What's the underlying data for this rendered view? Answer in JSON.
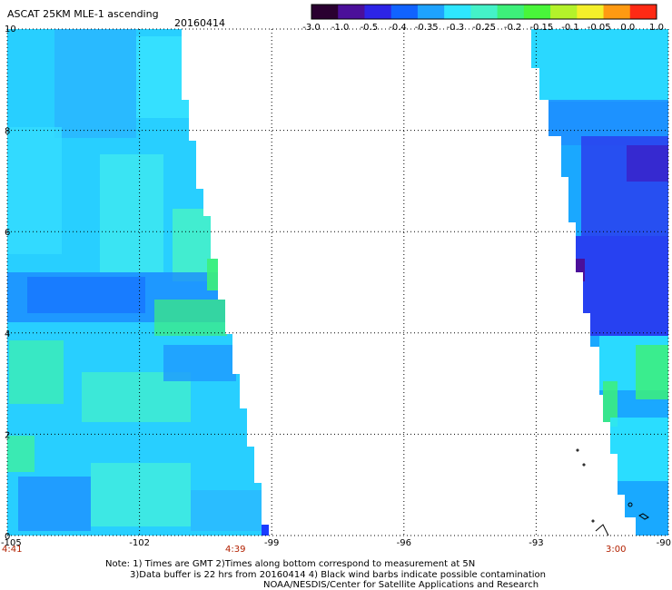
{
  "header": {
    "title": "ASCAT 25KM MLE-1 ascending",
    "date": "20160414"
  },
  "colorbar": {
    "labels": [
      "-3.0",
      "-1.0",
      "-0.5",
      "-0.4",
      "-0.35",
      "-0.3",
      "-0.25",
      "-0.2",
      "-0.15",
      "-0.1",
      "-0.05",
      "0.0",
      "1.0"
    ],
    "colors": [
      "#2a0030",
      "#4b0f9a",
      "#2d24e6",
      "#1163ff",
      "#1ea3ff",
      "#2ee6ff",
      "#44f2c8",
      "#3df07a",
      "#49f53a",
      "#b4f22a",
      "#f4ef2a",
      "#ff9a12",
      "#ff2a14"
    ]
  },
  "map": {
    "x_axis": {
      "ticks": [
        {
          "value": -105,
          "label": "-105"
        },
        {
          "value": -102,
          "label": "-102"
        },
        {
          "value": -99,
          "label": "-99"
        },
        {
          "value": -96,
          "label": "-96"
        },
        {
          "value": -93,
          "label": "-93"
        },
        {
          "value": -90,
          "label": "-90"
        }
      ]
    },
    "y_axis": {
      "ticks": [
        {
          "value": 0,
          "label": "0"
        },
        {
          "value": 2,
          "label": "2"
        },
        {
          "value": 4,
          "label": "4"
        },
        {
          "value": 6,
          "label": "6"
        },
        {
          "value": 8,
          "label": "8"
        },
        {
          "value": 10,
          "label": "10"
        }
      ]
    },
    "times": [
      {
        "label": "4:41",
        "lon": -105
      },
      {
        "label": "4:39",
        "lon": -99.8
      },
      {
        "label": "3:00",
        "lon": -91.4
      }
    ]
  },
  "notes": {
    "line1": "Note: 1) Times are GMT 2)Times along bottom correspond to measurement at 5N",
    "line2": "3)Data buffer is 22 hrs from 20160414 4) Black wind barbs indicate possible contamination",
    "line3": "NOAA/NESDIS/Center for Satellite Applications and Research"
  }
}
